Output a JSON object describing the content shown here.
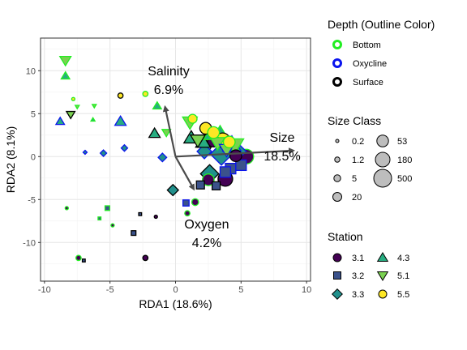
{
  "chart_data": {
    "type": "scatter",
    "title": "",
    "xlabel": "RDA1 (18.6%)",
    "ylabel": "RDA2 (8.1%)",
    "xlim": [
      -10.3,
      10.3
    ],
    "ylim": [
      -14.5,
      13.8
    ],
    "x_ticks": [
      -10,
      -5,
      0,
      5,
      10
    ],
    "y_ticks": [
      -10,
      -5,
      0,
      5,
      10
    ],
    "grid": true,
    "arrows": [
      {
        "name": "Salinity",
        "pct": "6.9%",
        "x": -0.8,
        "y": 5.8
      },
      {
        "name": "Size",
        "pct": "18.5%",
        "x": 9.0,
        "y": 0.7
      },
      {
        "name": "Oxygen",
        "pct": "4.2%",
        "x": 1.4,
        "y": -3.8
      }
    ],
    "legends": {
      "depth": {
        "title": "Depth (Outline Color)",
        "items": [
          {
            "label": "Bottom",
            "color": "#22ee22"
          },
          {
            "label": "Oxycline",
            "color": "#0a14ee"
          },
          {
            "label": "Surface",
            "color": "#000000"
          }
        ]
      },
      "size_class": {
        "title": "Size Class",
        "items": [
          {
            "label": "0.2",
            "value": 0.2
          },
          {
            "label": "1.2",
            "value": 1.2
          },
          {
            "label": "5",
            "value": 5
          },
          {
            "label": "20",
            "value": 20
          },
          {
            "label": "53",
            "value": 53
          },
          {
            "label": "180",
            "value": 180
          },
          {
            "label": "500",
            "value": 500
          }
        ]
      },
      "station": {
        "title": "Station",
        "items": [
          {
            "label": "3.1",
            "shape": "circle",
            "color": "#440154"
          },
          {
            "label": "3.2",
            "shape": "square",
            "color": "#3b528b"
          },
          {
            "label": "3.3",
            "shape": "diamond",
            "color": "#21908c"
          },
          {
            "label": "4.3",
            "shape": "triangle",
            "color": "#27ad81"
          },
          {
            "label": "5.1",
            "shape": "triangle-down",
            "color": "#7ad151"
          },
          {
            "label": "5.5",
            "shape": "circle",
            "color": "#fde725"
          }
        ]
      }
    },
    "points": [
      {
        "x": -8.4,
        "y": 11.2,
        "station": "5.1",
        "depth": "Bottom",
        "size": 20
      },
      {
        "x": -8.4,
        "y": 9.4,
        "station": "4.3",
        "depth": "Bottom",
        "size": 5
      },
      {
        "x": -7.8,
        "y": 6.7,
        "station": "5.5",
        "depth": "Bottom",
        "size": 0.2
      },
      {
        "x": -7.5,
        "y": 5.8,
        "station": "5.1",
        "depth": "Bottom",
        "size": 0.2
      },
      {
        "x": -8.0,
        "y": 4.9,
        "station": "5.1",
        "depth": "Surface",
        "size": 5
      },
      {
        "x": -8.8,
        "y": 4.1,
        "station": "4.3",
        "depth": "Oxycline",
        "size": 5
      },
      {
        "x": -6.2,
        "y": 5.9,
        "station": "5.1",
        "depth": "Bottom",
        "size": 0.2
      },
      {
        "x": -6.3,
        "y": 4.3,
        "station": "4.3",
        "depth": "Bottom",
        "size": 0.2
      },
      {
        "x": -4.2,
        "y": 7.1,
        "station": "5.5",
        "depth": "Surface",
        "size": 1.2
      },
      {
        "x": -2.3,
        "y": 7.3,
        "station": "5.5",
        "depth": "Bottom",
        "size": 1.2
      },
      {
        "x": -4.2,
        "y": 4.1,
        "station": "4.3",
        "depth": "Oxycline",
        "size": 20
      },
      {
        "x": -1.4,
        "y": 5.9,
        "station": "4.3",
        "depth": "Bottom",
        "size": 5
      },
      {
        "x": -1.6,
        "y": 2.7,
        "station": "4.3",
        "depth": "Surface",
        "size": 20
      },
      {
        "x": -0.7,
        "y": 2.8,
        "station": "5.1",
        "depth": "Bottom",
        "size": 5
      },
      {
        "x": -6.9,
        "y": 0.5,
        "station": "3.3",
        "depth": "Oxycline",
        "size": 0.2
      },
      {
        "x": -5.5,
        "y": 0.4,
        "station": "3.3",
        "depth": "Oxycline",
        "size": 1.2
      },
      {
        "x": -3.9,
        "y": 1.0,
        "station": "3.3",
        "depth": "Oxycline",
        "size": 1.2
      },
      {
        "x": -1.0,
        "y": -0.1,
        "station": "3.3",
        "depth": "Oxycline",
        "size": 5
      },
      {
        "x": -8.3,
        "y": -6.0,
        "station": "3.1",
        "depth": "Bottom",
        "size": 0.2
      },
      {
        "x": -5.2,
        "y": -6.0,
        "station": "3.2",
        "depth": "Bottom",
        "size": 1.2
      },
      {
        "x": -5.8,
        "y": -7.2,
        "station": "3.2",
        "depth": "Bottom",
        "size": 0.2
      },
      {
        "x": -4.8,
        "y": -8.0,
        "station": "3.1",
        "depth": "Bottom",
        "size": 0.2
      },
      {
        "x": -2.7,
        "y": -6.7,
        "station": "3.2",
        "depth": "Surface",
        "size": 0.2
      },
      {
        "x": -1.5,
        "y": -7.0,
        "station": "3.1",
        "depth": "Surface",
        "size": 0.2
      },
      {
        "x": -3.2,
        "y": -8.9,
        "station": "3.2",
        "depth": "Surface",
        "size": 1.2
      },
      {
        "x": -7.4,
        "y": -11.8,
        "station": "3.1",
        "depth": "Bottom",
        "size": 1.2
      },
      {
        "x": -7.0,
        "y": -12.1,
        "station": "3.2",
        "depth": "Surface",
        "size": 0.2
      },
      {
        "x": -2.3,
        "y": -11.8,
        "station": "3.1",
        "depth": "Surface",
        "size": 1.2
      },
      {
        "x": 0.8,
        "y": -5.4,
        "station": "3.2",
        "depth": "Oxycline",
        "size": 5
      },
      {
        "x": 0.9,
        "y": -6.6,
        "station": "3.1",
        "depth": "Bottom",
        "size": 1.2
      },
      {
        "x": 1.5,
        "y": -5.3,
        "station": "3.1",
        "depth": "Bottom",
        "size": 5
      },
      {
        "x": -0.2,
        "y": -3.9,
        "station": "3.3",
        "depth": "Surface",
        "size": 20
      },
      {
        "x": 1.9,
        "y": -3.3,
        "station": "3.2",
        "depth": "Surface",
        "size": 20
      },
      {
        "x": 2.5,
        "y": -2.7,
        "station": "3.1",
        "depth": "Bottom",
        "size": 53
      },
      {
        "x": 2.6,
        "y": -2.0,
        "station": "3.3",
        "depth": "Surface",
        "size": 180
      },
      {
        "x": 3.1,
        "y": -3.4,
        "station": "3.2",
        "depth": "Surface",
        "size": 20
      },
      {
        "x": 3.8,
        "y": -2.6,
        "station": "3.1",
        "depth": "Surface",
        "size": 180
      },
      {
        "x": 4.2,
        "y": -1.4,
        "station": "3.2",
        "depth": "Oxycline",
        "size": 53
      },
      {
        "x": 3.8,
        "y": -1.8,
        "station": "3.2",
        "depth": "Oxycline",
        "size": 53
      },
      {
        "x": 5.0,
        "y": -1.0,
        "station": "3.2",
        "depth": "Oxycline",
        "size": 53
      },
      {
        "x": 5.4,
        "y": 0.0,
        "station": "3.1",
        "depth": "Bottom",
        "size": 180
      },
      {
        "x": 4.6,
        "y": 0.1,
        "station": "3.1",
        "depth": "Surface",
        "size": 53
      },
      {
        "x": 3.5,
        "y": 0.3,
        "station": "3.3",
        "depth": "Oxycline",
        "size": 500
      },
      {
        "x": 4.7,
        "y": 0.6,
        "station": "3.3",
        "depth": "Oxycline",
        "size": 180
      },
      {
        "x": 2.2,
        "y": 0.6,
        "station": "3.3",
        "depth": "Oxycline",
        "size": 53
      },
      {
        "x": 2.9,
        "y": 1.8,
        "station": "3.1",
        "depth": "Surface",
        "size": 53
      },
      {
        "x": 1.2,
        "y": 2.2,
        "station": "4.3",
        "depth": "Surface",
        "size": 53
      },
      {
        "x": 2.1,
        "y": 1.7,
        "station": "4.3",
        "depth": "Surface",
        "size": 53
      },
      {
        "x": 2.7,
        "y": 2.6,
        "station": "4.3",
        "depth": "Bottom",
        "size": 53
      },
      {
        "x": 3.4,
        "y": 2.6,
        "station": "4.3",
        "depth": "Bottom",
        "size": 180
      },
      {
        "x": 4.3,
        "y": 1.4,
        "station": "4.3",
        "depth": "Oxycline",
        "size": 180
      },
      {
        "x": 1.7,
        "y": 1.9,
        "station": "5.1",
        "depth": "Surface",
        "size": 53
      },
      {
        "x": 2.4,
        "y": 1.3,
        "station": "5.1",
        "depth": "Surface",
        "size": 180
      },
      {
        "x": 3.2,
        "y": 1.6,
        "station": "5.1",
        "depth": "Bottom",
        "size": 53
      },
      {
        "x": 4.5,
        "y": 1.3,
        "station": "5.1",
        "depth": "Bottom",
        "size": 180
      },
      {
        "x": 3.9,
        "y": 0.8,
        "station": "5.1",
        "depth": "Oxycline",
        "size": 53
      },
      {
        "x": 1.1,
        "y": 4.0,
        "station": "5.1",
        "depth": "Bottom",
        "size": 53
      },
      {
        "x": 1.3,
        "y": 4.4,
        "station": "5.5",
        "depth": "Bottom",
        "size": 20
      },
      {
        "x": 2.3,
        "y": 3.3,
        "station": "5.5",
        "depth": "Surface",
        "size": 53
      },
      {
        "x": 2.9,
        "y": 2.8,
        "station": "5.5",
        "depth": "Bottom",
        "size": 53
      },
      {
        "x": 3.6,
        "y": 1.9,
        "station": "5.5",
        "depth": "Surface",
        "size": 180
      },
      {
        "x": 4.1,
        "y": 1.7,
        "station": "5.5",
        "depth": "Bottom",
        "size": 53
      }
    ]
  }
}
